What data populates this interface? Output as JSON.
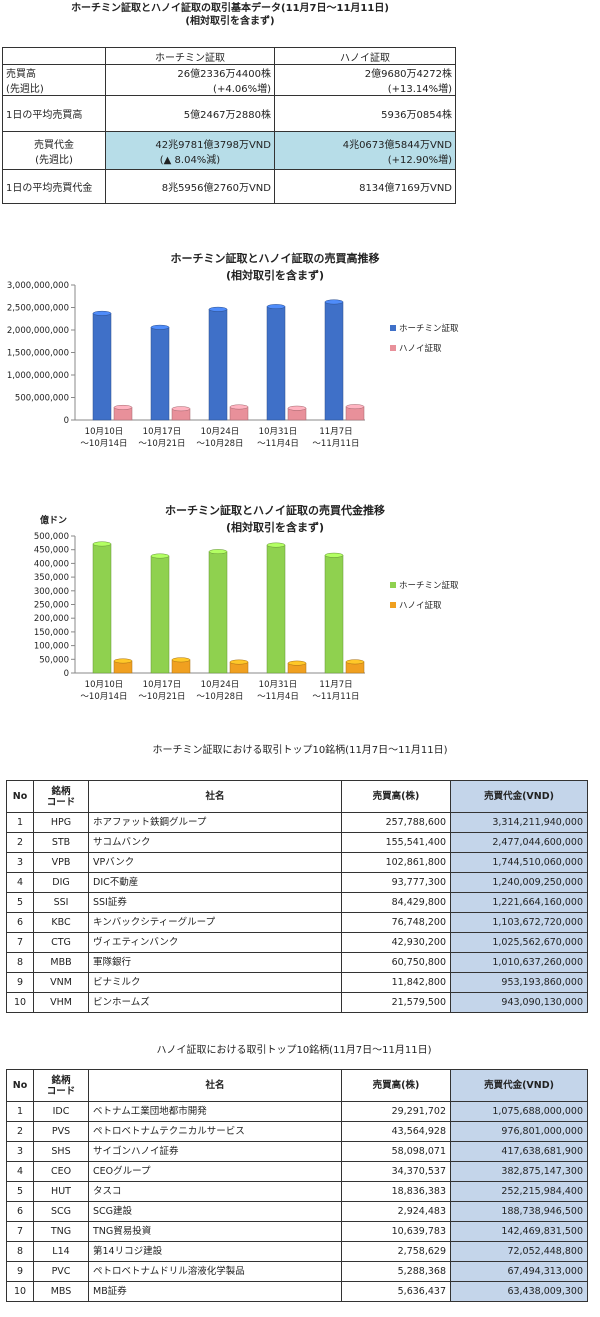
{
  "header": {
    "title": "ホーチミン証取とハノイ証取の取引基本データ(11月7日〜11月11日)",
    "subtitle": "(相対取引を含まず)"
  },
  "summary": {
    "col_hose": "ホーチミン証取",
    "col_hnx": "ハノイ証取",
    "rows": [
      {
        "label1": "売買高",
        "label2": "(先週比)",
        "hose1": "26億2336万4400株",
        "hose2": "(+4.06%増)",
        "hnx1": "2億9680万4272株",
        "hnx2": "(+13.14%増)"
      },
      {
        "label1": "1日の平均売買高",
        "label2": "",
        "hose1": "5億2467万2880株",
        "hose2": "",
        "hnx1": "5936万0854株",
        "hnx2": ""
      },
      {
        "label1": "売買代金",
        "label2": "(先週比)",
        "hose1": "42兆9781億3798万VND",
        "hose2": "(▲ 8.04%減)",
        "hnx1": "4兆0673億5844万VND",
        "hnx2": "(+12.90%増)"
      },
      {
        "label1": "1日の平均売買代金",
        "label2": "",
        "hose1": "8兆5956億2760万VND",
        "hose2": "",
        "hnx1": "8134億7169万VND",
        "hnx2": ""
      }
    ]
  },
  "chart_data": [
    {
      "type": "bar",
      "title": "ホーチミン証取とハノイ証取の売買高推移",
      "subtitle": "(相対取引を含まず)",
      "categories": [
        "10月10日〜10月14日",
        "10月17日〜10月21日",
        "10月24日〜10月28日",
        "10月31日〜11月4日",
        "11月7日〜11月11日"
      ],
      "categories_l1": [
        "10月10日",
        "10月17日",
        "10月24日",
        "10月31日",
        "11月7日"
      ],
      "categories_l2": [
        "〜10月14日",
        "〜10月21日",
        "〜10月28日",
        "〜11月4日",
        "〜11月11日"
      ],
      "series": [
        {
          "name": "ホーチミン証取",
          "values": [
            2370000000,
            2060000000,
            2460000000,
            2520000000,
            2623364400
          ],
          "color": "#3f70c8"
        },
        {
          "name": "ハノイ証取",
          "values": [
            280000000,
            250000000,
            290000000,
            262000000,
            296804272
          ],
          "color": "#e8909a"
        }
      ],
      "ylim": [
        0,
        3000000000
      ],
      "yticks": [
        0,
        500000000,
        1000000000,
        1500000000,
        2000000000,
        2500000000,
        3000000000
      ],
      "ytick_labels": [
        "0",
        "500,000,000",
        "1,000,000,000",
        "1,500,000,000",
        "2,000,000,000",
        "2,500,000,000",
        "3,000,000,000"
      ],
      "ylabel": "",
      "legend": "right"
    },
    {
      "type": "bar",
      "title": "ホーチミン証取とハノイ証取の売買代金推移",
      "subtitle": "(相対取引を含まず)",
      "categories": [
        "10月10日〜10月14日",
        "10月17日〜10月21日",
        "10月24日〜10月28日",
        "10月31日〜11月4日",
        "11月7日〜11月11日"
      ],
      "categories_l1": [
        "10月10日",
        "10月17日",
        "10月24日",
        "10月31日",
        "11月7日"
      ],
      "categories_l2": [
        "〜10月14日",
        "〜10月21日",
        "〜10月28日",
        "〜11月4日",
        "〜11月11日"
      ],
      "series": [
        {
          "name": "ホーチミン証取",
          "values": [
            471000,
            427000,
            443000,
            467000,
            429781
          ],
          "color": "#8fd14f"
        },
        {
          "name": "ハノイ証取",
          "values": [
            44000,
            48000,
            40000,
            36000,
            40674
          ],
          "color": "#f0a020"
        }
      ],
      "ylim": [
        0,
        500000
      ],
      "yticks": [
        0,
        50000,
        100000,
        150000,
        200000,
        250000,
        300000,
        350000,
        400000,
        450000,
        500000
      ],
      "ytick_labels": [
        "0",
        "50,000",
        "100,000",
        "150,000",
        "200,000",
        "250,000",
        "300,000",
        "350,000",
        "400,000",
        "450,000",
        "500,000"
      ],
      "ylabel": "億ドン",
      "legend": "right"
    }
  ],
  "hose_top10": {
    "title": "ホーチミン証取における取引トップ10銘柄(11月7日〜11月11日)",
    "headers": {
      "no": "No",
      "code1": "銘柄",
      "code2": "コード",
      "name": "社名",
      "vol": "売買高(株)",
      "val": "売買代金(VND)"
    },
    "rows": [
      {
        "no": "1",
        "code": "HPG",
        "name": "ホアファット鉄鋼グループ",
        "vol": "257,788,600",
        "val": "3,314,211,940,000"
      },
      {
        "no": "2",
        "code": "STB",
        "name": "サコムバンク",
        "vol": "155,541,400",
        "val": "2,477,044,600,000"
      },
      {
        "no": "3",
        "code": "VPB",
        "name": "VPバンク",
        "vol": "102,861,800",
        "val": "1,744,510,060,000"
      },
      {
        "no": "4",
        "code": "DIG",
        "name": "DIC不動産",
        "vol": "93,777,300",
        "val": "1,240,009,250,000"
      },
      {
        "no": "5",
        "code": "SSI",
        "name": "SSI証券",
        "vol": "84,429,800",
        "val": "1,221,664,160,000"
      },
      {
        "no": "6",
        "code": "KBC",
        "name": "キンバックシティーグループ",
        "vol": "76,748,200",
        "val": "1,103,672,720,000"
      },
      {
        "no": "7",
        "code": "CTG",
        "name": "ヴィエティンバンク",
        "vol": "42,930,200",
        "val": "1,025,562,670,000"
      },
      {
        "no": "8",
        "code": "MBB",
        "name": "軍隊銀行",
        "vol": "60,750,800",
        "val": "1,010,637,260,000"
      },
      {
        "no": "9",
        "code": "VNM",
        "name": "ビナミルク",
        "vol": "11,842,800",
        "val": "953,193,860,000"
      },
      {
        "no": "10",
        "code": "VHM",
        "name": "ビンホームズ",
        "vol": "21,579,500",
        "val": "943,090,130,000"
      }
    ]
  },
  "hnx_top10": {
    "title": "ハノイ証取における取引トップ10銘柄(11月7日〜11月11日)",
    "headers": {
      "no": "No",
      "code1": "銘柄",
      "code2": "コード",
      "name": "社名",
      "vol": "売買高(株)",
      "val": "売買代金(VND)"
    },
    "rows": [
      {
        "no": "1",
        "code": "IDC",
        "name": "ベトナム工業団地都市開発",
        "vol": "29,291,702",
        "val": "1,075,688,000,000"
      },
      {
        "no": "2",
        "code": "PVS",
        "name": "ペトロベトナムテクニカルサービス",
        "vol": "43,564,928",
        "val": "976,801,000,000"
      },
      {
        "no": "3",
        "code": "SHS",
        "name": "サイゴンハノイ証券",
        "vol": "58,098,071",
        "val": "417,638,681,900"
      },
      {
        "no": "4",
        "code": "CEO",
        "name": "CEOグループ",
        "vol": "34,370,537",
        "val": "382,875,147,300"
      },
      {
        "no": "5",
        "code": "HUT",
        "name": "タスコ",
        "vol": "18,836,383",
        "val": "252,215,984,400"
      },
      {
        "no": "6",
        "code": "SCG",
        "name": "SCG建設",
        "vol": "2,924,483",
        "val": "188,738,946,500"
      },
      {
        "no": "7",
        "code": "TNG",
        "name": "TNG貿易投資",
        "vol": "10,639,783",
        "val": "142,469,831,500"
      },
      {
        "no": "8",
        "code": "L14",
        "name": "第14リコジ建設",
        "vol": "2,758,629",
        "val": "72,052,448,800"
      },
      {
        "no": "9",
        "code": "PVC",
        "name": "ペトロベトナムドリル溶液化学製品",
        "vol": "5,288,368",
        "val": "67,494,313,000"
      },
      {
        "no": "10",
        "code": "MBS",
        "name": "MB証券",
        "vol": "5,636,437",
        "val": "63,438,009,300"
      }
    ]
  }
}
